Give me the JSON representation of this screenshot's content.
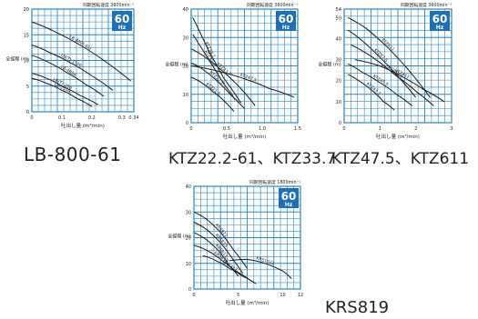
{
  "colors": {
    "grid": "#2b86c9",
    "line": "#1a1a1a",
    "badge_bg": "#1c6fb8",
    "badge_text": "#ffffff",
    "text": "#222222"
  },
  "captions": {
    "c1": "LB-800-61",
    "c2": "KTZ22.2-61、KTZ33.7",
    "c3": "KTZ47.5、KTZ611",
    "c4": "KRS819"
  },
  "chart_data": [
    {
      "type": "line",
      "speed": "同期回転速度 3600min⁻¹",
      "badge": {
        "freq": "60",
        "unit": "Hz"
      },
      "xlabel": "吐出し量 (m³/min)",
      "ylabel": "全揚程 (m)",
      "xlim": [
        0,
        0.34
      ],
      "ylim": [
        0,
        20
      ],
      "xticks": [
        {
          "v": 0,
          "t": "0"
        },
        {
          "v": 0.1,
          "t": "0.1"
        },
        {
          "v": 0.2,
          "t": "0.2"
        },
        {
          "v": 0.3,
          "t": "0.3"
        },
        {
          "v": 0.34,
          "t": "0.34"
        }
      ],
      "yticks": [
        {
          "v": 0,
          "t": "0"
        },
        {
          "v": 5,
          "t": "5"
        },
        {
          "v": 10,
          "t": "10"
        },
        {
          "v": 15,
          "t": "15"
        },
        {
          "v": 20,
          "t": "20"
        }
      ],
      "grid": true,
      "series": [
        {
          "name": "LB-800(-61)",
          "x": [
            0,
            0.08,
            0.16,
            0.24,
            0.33
          ],
          "y": [
            17.5,
            15.5,
            13,
            10,
            6
          ]
        },
        {
          "name": "LB(T)-1500",
          "x": [
            0,
            0.06,
            0.13,
            0.2,
            0.27
          ],
          "y": [
            13,
            11.5,
            9.5,
            7,
            4.2
          ]
        },
        {
          "name": "LB-480A",
          "x": [
            0,
            0.06,
            0.12,
            0.18,
            0.24
          ],
          "y": [
            11,
            9.5,
            7.5,
            5.3,
            3
          ]
        },
        {
          "name": "LB(T)-250",
          "x": [
            0,
            0.05,
            0.1,
            0.16,
            0.22
          ],
          "y": [
            7.5,
            6.5,
            5,
            3.2,
            1.4
          ]
        },
        {
          "name": "LB-250A",
          "x": [
            0,
            0.05,
            0.1,
            0.15,
            0.2
          ],
          "y": [
            6.5,
            5.5,
            4.2,
            2.6,
            1
          ]
        }
      ]
    },
    {
      "type": "line",
      "speed": "同期回転速度 3600min⁻¹",
      "badge": {
        "freq": "60",
        "unit": "Hz"
      },
      "xlabel": "吐出し量 (m³/min)",
      "ylabel": "全揚程 (m)",
      "xlim": [
        0,
        1.5
      ],
      "ylim": [
        0,
        40
      ],
      "xticks": [
        {
          "v": 0,
          "t": "0"
        },
        {
          "v": 0.5,
          "t": "0.5"
        },
        {
          "v": 1,
          "t": "1.0"
        },
        {
          "v": 1.5,
          "t": "1.5"
        }
      ],
      "yticks": [
        {
          "v": 0,
          "t": "0"
        },
        {
          "v": 10,
          "t": "10"
        },
        {
          "v": 20,
          "t": "20"
        },
        {
          "v": 30,
          "t": "30"
        },
        {
          "v": 40,
          "t": "40"
        }
      ],
      "grid": true,
      "series": [
        {
          "name": "KTZ33.7",
          "x": [
            0.02,
            0.1,
            0.25,
            0.45,
            0.7
          ],
          "y": [
            37,
            33,
            25,
            16,
            7
          ]
        },
        {
          "name": "KTZ32.2",
          "x": [
            0.02,
            0.1,
            0.25,
            0.45,
            0.62
          ],
          "y": [
            31,
            28,
            22,
            14,
            8
          ]
        },
        {
          "name": "KTZ23.7",
          "x": [
            0,
            0.2,
            0.45,
            0.7,
            0.9
          ],
          "y": [
            26,
            23,
            18,
            12,
            6
          ]
        },
        {
          "name": "KTZ22.2",
          "x": [
            0,
            0.15,
            0.35,
            0.55,
            0.75
          ],
          "y": [
            21,
            19,
            15,
            10,
            5
          ]
        },
        {
          "name": "KTZ21.5",
          "x": [
            0,
            0.15,
            0.3,
            0.45,
            0.6
          ],
          "y": [
            16,
            14,
            11,
            8,
            4
          ]
        },
        {
          "name": "KTZ47.5",
          "x": [
            0,
            0.4,
            0.8,
            1.1,
            1.45
          ],
          "y": [
            20,
            18,
            15,
            12,
            9
          ]
        }
      ]
    },
    {
      "type": "line",
      "speed": "同期回転速度 3600min⁻¹",
      "badge": {
        "freq": "60",
        "unit": "Hz"
      },
      "xlabel": "吐出し量 (m³/min)",
      "ylabel": "全揚程 (m)",
      "xlim": [
        0,
        3
      ],
      "ylim": [
        0,
        54
      ],
      "xticks": [
        {
          "v": 0,
          "t": "0"
        },
        {
          "v": 1,
          "t": "1"
        },
        {
          "v": 2,
          "t": "2"
        },
        {
          "v": 3,
          "t": "3"
        }
      ],
      "yticks": [
        {
          "v": 0,
          "t": "0"
        },
        {
          "v": 10,
          "t": "10"
        },
        {
          "v": 20,
          "t": "20"
        },
        {
          "v": 30,
          "t": "30"
        },
        {
          "v": 40,
          "t": "40"
        },
        {
          "v": 50,
          "t": "50"
        },
        {
          "v": 54,
          "t": "54"
        }
      ],
      "grid": true,
      "series": [
        {
          "name": "KTZ611",
          "x": [
            0.1,
            0.6,
            1.2,
            1.8,
            2.4
          ],
          "y": [
            50,
            45,
            36,
            25,
            12
          ]
        },
        {
          "name": "KTZ67.5",
          "x": [
            0.1,
            0.5,
            1,
            1.5,
            2
          ],
          "y": [
            44,
            39,
            31,
            22,
            12
          ]
        },
        {
          "name": "KTZ47.5",
          "x": [
            0.2,
            0.8,
            1.4,
            2,
            2.5
          ],
          "y": [
            37,
            31,
            23,
            15,
            8
          ]
        },
        {
          "name": "KTZ45.5",
          "x": [
            0.1,
            0.5,
            1,
            1.5,
            1.9
          ],
          "y": [
            28,
            24,
            19,
            13,
            8
          ]
        },
        {
          "name": "KTZ43.7",
          "x": [
            0.1,
            0.4,
            0.8,
            1.1,
            1.4
          ],
          "y": [
            23,
            20,
            15,
            10,
            6
          ]
        },
        {
          "name": "KTZ411",
          "x": [
            0.3,
            1,
            1.6,
            2.2,
            2.8
          ],
          "y": [
            30,
            27,
            22,
            16,
            10
          ]
        }
      ]
    },
    {
      "type": "line",
      "speed": "同期回転速度 1800min⁻¹",
      "badge": {
        "freq": "60",
        "unit": "Hz"
      },
      "xlabel": "吐出し量 (m³/min)",
      "ylabel": "全揚程 (m)",
      "xlim": [
        0,
        12
      ],
      "ylim": [
        0,
        40
      ],
      "xticks": [
        {
          "v": 0,
          "t": "0"
        },
        {
          "v": 5,
          "t": "5"
        },
        {
          "v": 10,
          "t": "10"
        },
        {
          "v": 12,
          "t": "12"
        }
      ],
      "yticks": [
        {
          "v": 0,
          "t": "0"
        },
        {
          "v": 10,
          "t": "10"
        },
        {
          "v": 20,
          "t": "20"
        },
        {
          "v": 30,
          "t": "30"
        },
        {
          "v": 40,
          "t": "40"
        }
      ],
      "grid": true,
      "series": [
        {
          "name": "KRS822",
          "x": [
            0,
            1.5,
            3,
            4.5,
            6
          ],
          "y": [
            30,
            27,
            22,
            15,
            8
          ]
        },
        {
          "name": "KRS815",
          "x": [
            0,
            1.5,
            3,
            4.5,
            5.5
          ],
          "y": [
            26,
            23,
            18,
            11,
            6
          ]
        },
        {
          "name": "KRS811",
          "x": [
            0,
            1.5,
            3,
            4,
            5
          ],
          "y": [
            22,
            19,
            14,
            9,
            5
          ]
        },
        {
          "name": "KRS819",
          "x": [
            0,
            1.5,
            3,
            4.5,
            6.5
          ],
          "y": [
            17,
            15,
            11.5,
            7.5,
            3
          ]
        },
        {
          "name": "KRS1022",
          "x": [
            4,
            6,
            8,
            10,
            11
          ],
          "y": [
            11,
            11.5,
            10,
            7,
            4
          ]
        },
        {
          "name": "KRS837",
          "x": [
            1,
            2.5,
            4,
            5.5,
            7
          ],
          "y": [
            13,
            11,
            8,
            5,
            2
          ]
        }
      ]
    }
  ]
}
